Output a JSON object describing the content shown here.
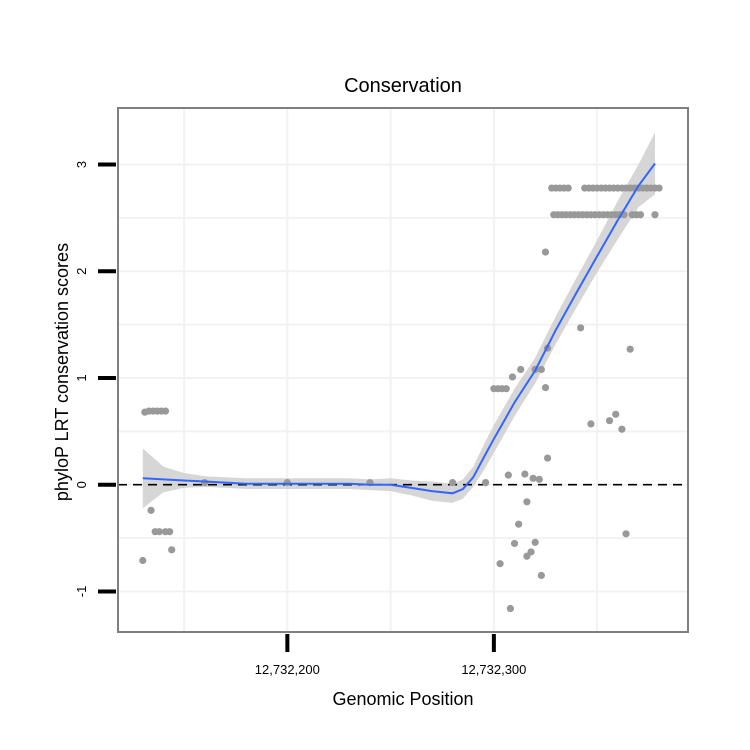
{
  "chart_data": {
    "type": "scatter",
    "title": "Conservation",
    "xlabel": "Genomic Position",
    "ylabel": "phyloP LRT conservation scores",
    "xlim": [
      12732118,
      12732394
    ],
    "ylim": [
      -1.38,
      3.53
    ],
    "x_ticks": [
      12732200,
      12732300
    ],
    "x_tick_labels": [
      "12,732,200",
      "12,732,300"
    ],
    "y_ticks": [
      -1,
      0,
      1,
      2,
      3
    ],
    "y_tick_labels": [
      "-1",
      "0",
      "1",
      "2",
      "3"
    ],
    "grid": true,
    "reference_line": {
      "y": 0,
      "style": "dashed"
    },
    "colors": {
      "points": "#999999",
      "trend": "#3366ff",
      "band": "#cccccc",
      "frame": "#7f7f7f",
      "grid": "#f2f2f2"
    },
    "series": [
      {
        "points": [
          [
            12732130,
            -0.71
          ],
          [
            12732131,
            0.68
          ],
          [
            12732133,
            0.69
          ],
          [
            12732135,
            0.69
          ],
          [
            12732137,
            0.69
          ],
          [
            12732139,
            0.69
          ],
          [
            12732141,
            0.69
          ],
          [
            12732134,
            -0.24
          ],
          [
            12732136,
            -0.44
          ],
          [
            12732138,
            -0.44
          ],
          [
            12732141,
            -0.44
          ],
          [
            12732143,
            -0.44
          ],
          [
            12732144,
            -0.61
          ],
          [
            12732300,
            0.9
          ],
          [
            12732302,
            0.9
          ],
          [
            12732304,
            0.9
          ],
          [
            12732306,
            0.9
          ],
          [
            12732309,
            1.01
          ],
          [
            12732313,
            1.08
          ],
          [
            12732320,
            1.08
          ],
          [
            12732323,
            1.08
          ],
          [
            12732325,
            0.91
          ],
          [
            12732326,
            1.28
          ],
          [
            12732325,
            2.18
          ],
          [
            12732326,
            0.25
          ],
          [
            12732303,
            -0.74
          ],
          [
            12732307,
            0.09
          ],
          [
            12732308,
            -1.16
          ],
          [
            12732310,
            -0.55
          ],
          [
            12732312,
            -0.37
          ],
          [
            12732315,
            0.1
          ],
          [
            12732316,
            -0.16
          ],
          [
            12732316,
            -0.67
          ],
          [
            12732318,
            -0.63
          ],
          [
            12732319,
            0.06
          ],
          [
            12732320,
            -0.54
          ],
          [
            12732322,
            0.05
          ],
          [
            12732323,
            -0.85
          ],
          [
            12732328,
            2.78
          ],
          [
            12732330,
            2.78
          ],
          [
            12732332,
            2.78
          ],
          [
            12732334,
            2.78
          ],
          [
            12732336,
            2.78
          ],
          [
            12732344,
            2.78
          ],
          [
            12732346,
            2.78
          ],
          [
            12732348,
            2.78
          ],
          [
            12732350,
            2.78
          ],
          [
            12732352,
            2.78
          ],
          [
            12732354,
            2.78
          ],
          [
            12732356,
            2.78
          ],
          [
            12732358,
            2.78
          ],
          [
            12732360,
            2.78
          ],
          [
            12732362,
            2.78
          ],
          [
            12732364,
            2.78
          ],
          [
            12732366,
            2.78
          ],
          [
            12732368,
            2.78
          ],
          [
            12732370,
            2.78
          ],
          [
            12732372,
            2.78
          ],
          [
            12732374,
            2.78
          ],
          [
            12732376,
            2.78
          ],
          [
            12732378,
            2.78
          ],
          [
            12732380,
            2.78
          ],
          [
            12732329,
            2.53
          ],
          [
            12732331,
            2.53
          ],
          [
            12732333,
            2.53
          ],
          [
            12732335,
            2.53
          ],
          [
            12732337,
            2.53
          ],
          [
            12732339,
            2.53
          ],
          [
            12732341,
            2.53
          ],
          [
            12732343,
            2.53
          ],
          [
            12732345,
            2.53
          ],
          [
            12732347,
            2.53
          ],
          [
            12732349,
            2.53
          ],
          [
            12732351,
            2.53
          ],
          [
            12732353,
            2.53
          ],
          [
            12732355,
            2.53
          ],
          [
            12732357,
            2.53
          ],
          [
            12732359,
            2.53
          ],
          [
            12732361,
            2.53
          ],
          [
            12732363,
            2.53
          ],
          [
            12732367,
            2.53
          ],
          [
            12732369,
            2.53
          ],
          [
            12732371,
            2.53
          ],
          [
            12732378,
            2.53
          ],
          [
            12732342,
            1.47
          ],
          [
            12732347,
            0.57
          ],
          [
            12732356,
            0.6
          ],
          [
            12732359,
            0.66
          ],
          [
            12732362,
            0.52
          ],
          [
            12732364,
            -0.46
          ],
          [
            12732366,
            1.27
          ],
          [
            12732160,
            0.02
          ],
          [
            12732200,
            0.02
          ],
          [
            12732240,
            0.02
          ],
          [
            12732280,
            0.02
          ],
          [
            12732296,
            0.02
          ]
        ]
      }
    ],
    "trend": {
      "x": [
        12732130,
        12732140,
        12732150,
        12732160,
        12732170,
        12732180,
        12732190,
        12732200,
        12732210,
        12732220,
        12732230,
        12732240,
        12732250,
        12732260,
        12732270,
        12732280,
        12732285,
        12732290,
        12732295,
        12732300,
        12732305,
        12732310,
        12732320,
        12732330,
        12732340,
        12732350,
        12732360,
        12732370,
        12732378
      ],
      "y": [
        0.06,
        0.05,
        0.04,
        0.03,
        0.02,
        0.01,
        0.01,
        0.01,
        0.01,
        0.01,
        0.01,
        0.0,
        0.0,
        -0.03,
        -0.06,
        -0.08,
        -0.04,
        0.07,
        0.25,
        0.43,
        0.6,
        0.77,
        1.07,
        1.45,
        1.8,
        2.14,
        2.48,
        2.8,
        3.01
      ],
      "lower": [
        -0.22,
        -0.07,
        -0.03,
        -0.02,
        -0.03,
        -0.04,
        -0.04,
        -0.04,
        -0.04,
        -0.04,
        -0.04,
        -0.05,
        -0.06,
        -0.1,
        -0.15,
        -0.17,
        -0.13,
        -0.02,
        0.13,
        0.3,
        0.47,
        0.64,
        0.95,
        1.32,
        1.66,
        1.99,
        2.3,
        2.6,
        2.72
      ],
      "upper": [
        0.34,
        0.17,
        0.11,
        0.08,
        0.07,
        0.06,
        0.06,
        0.06,
        0.06,
        0.06,
        0.06,
        0.05,
        0.06,
        0.04,
        0.03,
        0.01,
        0.05,
        0.17,
        0.37,
        0.56,
        0.73,
        0.9,
        1.19,
        1.58,
        1.94,
        2.29,
        2.66,
        3.0,
        3.3
      ]
    }
  }
}
